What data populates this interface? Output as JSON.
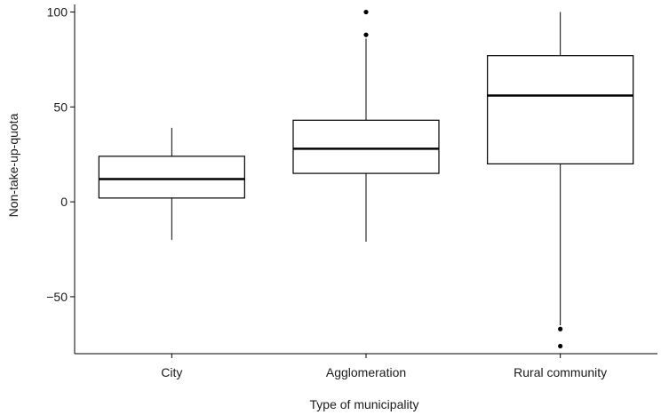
{
  "chart_data": {
    "type": "boxplot",
    "title": "",
    "xlabel": "Type of municipality",
    "ylabel": "Non-take-up-quota",
    "categories": [
      "City",
      "Agglomeration",
      "Rural community"
    ],
    "boxes": [
      {
        "category": "City",
        "whisker_low": -20,
        "q1": 2,
        "median": 12,
        "q3": 24,
        "whisker_high": 39,
        "outliers": []
      },
      {
        "category": "Agglomeration",
        "whisker_low": -21,
        "q1": 15,
        "median": 28,
        "q3": 43,
        "whisker_high": 86,
        "outliers": [
          88,
          100
        ]
      },
      {
        "category": "Rural community",
        "whisker_low": -65,
        "q1": 20,
        "median": 56,
        "q3": 77,
        "whisker_high": 100,
        "outliers": [
          -67,
          -76
        ]
      }
    ],
    "yticks": [
      -50,
      0,
      50,
      100
    ],
    "ylim": [
      -80,
      104
    ],
    "grid": false,
    "legend": "none"
  }
}
